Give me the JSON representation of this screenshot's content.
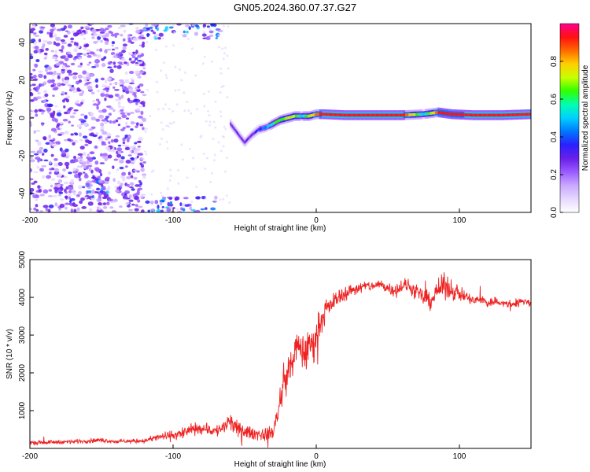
{
  "title": "GN05.2024.360.07.37.G27",
  "colors": {
    "snr_line": "#ee2222",
    "colormap": [
      "#ffffff",
      "#e6d8ff",
      "#c9a8ff",
      "#9a5bff",
      "#6a1fe8",
      "#2a20ff",
      "#0077ff",
      "#00d0ff",
      "#00ffb0",
      "#30ff00",
      "#c8ff00",
      "#ffd000",
      "#ff6a00",
      "#ff1010",
      "#ff0090"
    ]
  },
  "chart_data": [
    {
      "type": "heatmap",
      "xlabel": "Height of straight line (km)",
      "ylabel": "Frequency (Hz)",
      "xlim": [
        -200,
        150
      ],
      "ylim": [
        -50,
        50
      ],
      "x_ticks": [
        -200,
        -100,
        0,
        100
      ],
      "x_tick_labels": [
        "-200",
        "-100",
        "0",
        "100"
      ],
      "y_ticks": [
        -40,
        -20,
        0,
        20,
        40
      ],
      "y_tick_labels": [
        "-40",
        "-20",
        "0",
        "20",
        "40"
      ],
      "colorbar": {
        "label": "Normalized spectral amplitude",
        "range": [
          0,
          1
        ],
        "ticks": [
          0,
          0.2,
          0.4,
          0.6,
          0.8
        ],
        "tick_labels": [
          "0.0",
          "0.2",
          "0.4",
          "0.6",
          "0.8"
        ]
      },
      "ridge": {
        "description_free": true,
        "x": [
          -60,
          -55,
          -50,
          -45,
          -40,
          -35,
          -30,
          -25,
          -20,
          -15,
          -10,
          -5,
          0,
          5,
          20,
          40,
          60,
          75,
          85,
          95,
          110,
          130,
          150
        ],
        "freq": [
          -3,
          -8,
          -13,
          -9,
          -6,
          -5,
          -3,
          -1,
          0,
          1,
          1,
          1,
          2,
          2,
          1.5,
          1.5,
          1.5,
          2,
          3,
          2,
          1.5,
          1.5,
          2
        ],
        "amplitude": [
          0.3,
          0.3,
          0.3,
          0.3,
          0.35,
          0.45,
          0.6,
          0.65,
          0.7,
          0.7,
          0.5,
          0.7,
          0.85,
          0.95,
          0.95,
          0.95,
          0.95,
          0.5,
          0.9,
          0.9,
          0.95,
          0.95,
          0.95
        ]
      },
      "noise_regions": [
        {
          "x": [
            -200,
            -120
          ],
          "freq": [
            -50,
            50
          ],
          "amplitude": 0.2
        },
        {
          "x": [
            -160,
            -145
          ],
          "freq": [
            -42,
            -30
          ],
          "amplitude": 0.3
        },
        {
          "x": [
            -120,
            -65
          ],
          "freq": [
            42,
            50
          ],
          "amplitude": 0.3
        },
        {
          "x": [
            -120,
            -70
          ],
          "freq": [
            -50,
            -42
          ],
          "amplitude": 0.3
        }
      ]
    },
    {
      "type": "line",
      "xlabel": "Height of straight line (km)",
      "ylabel": "SNR (10 * v/v)",
      "xlim": [
        -200,
        150
      ],
      "ylim": [
        0,
        5000
      ],
      "x_ticks": [
        -200,
        -100,
        0,
        100
      ],
      "x_tick_labels": [
        "-200",
        "-100",
        "0",
        "100"
      ],
      "y_ticks": [
        1000,
        2000,
        3000,
        4000,
        5000
      ],
      "y_tick_labels": [
        "1000",
        "2000",
        "3000",
        "4000",
        "5000"
      ],
      "series": [
        {
          "x": [
            -200,
            -190,
            -180,
            -170,
            -160,
            -150,
            -140,
            -130,
            -120,
            -110,
            -100,
            -95,
            -90,
            -85,
            -80,
            -75,
            -70,
            -65,
            -60,
            -55,
            -50,
            -45,
            -40,
            -35,
            -30,
            -27,
            -25,
            -22,
            -20,
            -17,
            -15,
            -12,
            -10,
            -7,
            -5,
            -2,
            0,
            2,
            5,
            8,
            10,
            15,
            20,
            25,
            30,
            35,
            40,
            45,
            50,
            55,
            60,
            65,
            70,
            75,
            80,
            85,
            90,
            95,
            100,
            105,
            110,
            115,
            120,
            125,
            130,
            135,
            140,
            145,
            150
          ],
          "y": [
            150,
            160,
            170,
            180,
            200,
            220,
            180,
            190,
            200,
            300,
            350,
            380,
            450,
            500,
            550,
            500,
            450,
            550,
            700,
            500,
            450,
            400,
            380,
            350,
            450,
            900,
            1300,
            1800,
            2000,
            2300,
            2500,
            2700,
            2600,
            2500,
            2700,
            2800,
            3000,
            3300,
            3500,
            3700,
            3800,
            4000,
            4100,
            4200,
            4250,
            4300,
            4300,
            4350,
            4250,
            4200,
            4300,
            4300,
            4100,
            4000,
            3900,
            4200,
            4300,
            4200,
            4100,
            4000,
            3900,
            3950,
            3850,
            3900,
            3850,
            3800,
            3850,
            3900,
            3850
          ],
          "noise_amplitude": [
            80,
            80,
            80,
            80,
            90,
            90,
            80,
            80,
            90,
            150,
            200,
            220,
            250,
            250,
            250,
            250,
            250,
            300,
            400,
            300,
            250,
            250,
            250,
            250,
            300,
            500,
            600,
            700,
            700,
            700,
            700,
            700,
            700,
            700,
            700,
            700,
            600,
            500,
            450,
            400,
            350,
            300,
            300,
            250,
            250,
            200,
            200,
            200,
            250,
            250,
            300,
            300,
            300,
            350,
            350,
            400,
            500,
            400,
            300,
            250,
            200,
            200,
            200,
            180,
            180,
            180,
            180,
            180,
            180
          ]
        }
      ]
    }
  ]
}
